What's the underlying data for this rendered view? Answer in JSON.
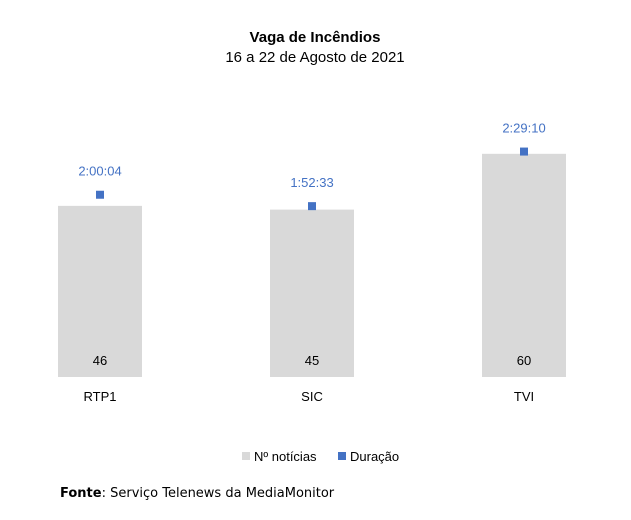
{
  "chart_data": {
    "type": "bar",
    "title": "Vaga de Incêndios",
    "subtitle": "16 a 22 de Agosto de 2021",
    "categories": [
      "RTP1",
      "SIC",
      "TVI"
    ],
    "series": [
      {
        "name": "Nº notícias",
        "kind": "bar",
        "color": "#d9d9d9",
        "values": [
          46,
          45,
          60
        ],
        "labels": [
          "46",
          "45",
          "60"
        ]
      },
      {
        "name": "Duração",
        "kind": "marker",
        "color": "#4472c4",
        "values": [
          7204,
          6753,
          8950
        ],
        "labels": [
          "2:00:04",
          "1:52:33",
          "2:29:10"
        ]
      }
    ],
    "legend": "bottom",
    "grid": false
  },
  "source": {
    "label": "Fonte",
    "text": "Serviço Telenews da MediaMonitor"
  }
}
